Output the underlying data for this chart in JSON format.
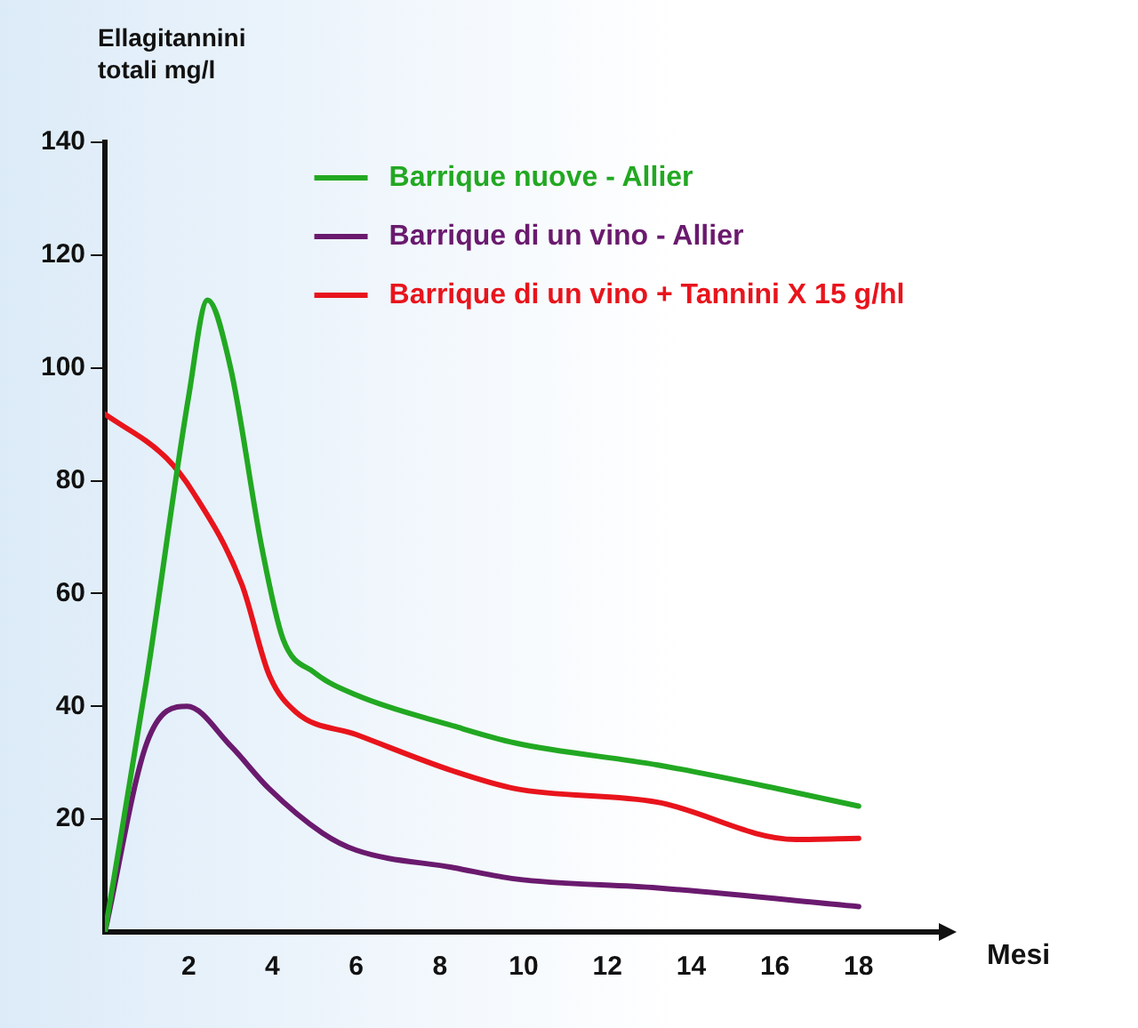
{
  "chart_data": {
    "type": "line",
    "ylabel": "Ellagitannini totali mg/l",
    "xlabel": "Mesi",
    "xlim": [
      0,
      20
    ],
    "xticks": [
      2,
      4,
      6,
      8,
      10,
      12,
      14,
      16,
      18
    ],
    "ylim": [
      0,
      140
    ],
    "yticks": [
      20,
      40,
      60,
      80,
      100,
      120,
      140
    ],
    "grid": false,
    "legend": "top right",
    "marker": "none",
    "line_style": "solid",
    "series": [
      {
        "name": "Barrique nuove - Allier",
        "color": "#22a822",
        "x": [
          0,
          1,
          2,
          2.45,
          3,
          3.75,
          4.25,
          5,
          6,
          8.33,
          9.8,
          13.2,
          16,
          18
        ],
        "values": [
          0,
          45,
          95,
          112,
          100,
          68,
          52,
          46,
          42,
          36.5,
          33.5,
          29.6,
          25.5,
          22.3
        ]
      },
      {
        "name": "Barrique di un vino - Allier",
        "color": "#6a1a6e",
        "x": [
          0,
          1,
          1.96,
          3,
          3.92,
          5.2,
          6,
          8.33,
          9.8,
          13.2,
          18
        ],
        "values": [
          0,
          33.5,
          40,
          33,
          25.4,
          17.5,
          14.5,
          11.4,
          9.4,
          7.8,
          4.5
        ]
      },
      {
        "name": "Barrique di un vino + Tannini X 15 g/hl",
        "color": "#e8141c",
        "x": [
          0,
          1.47,
          2.1,
          3.27,
          3.92,
          4.56,
          6,
          8.33,
          9.8,
          13.2,
          16.5,
          18
        ],
        "values": [
          91.8,
          84,
          78,
          61.6,
          45.6,
          39,
          35,
          28.5,
          25.4,
          23,
          16.4,
          16.6
        ]
      }
    ]
  }
}
